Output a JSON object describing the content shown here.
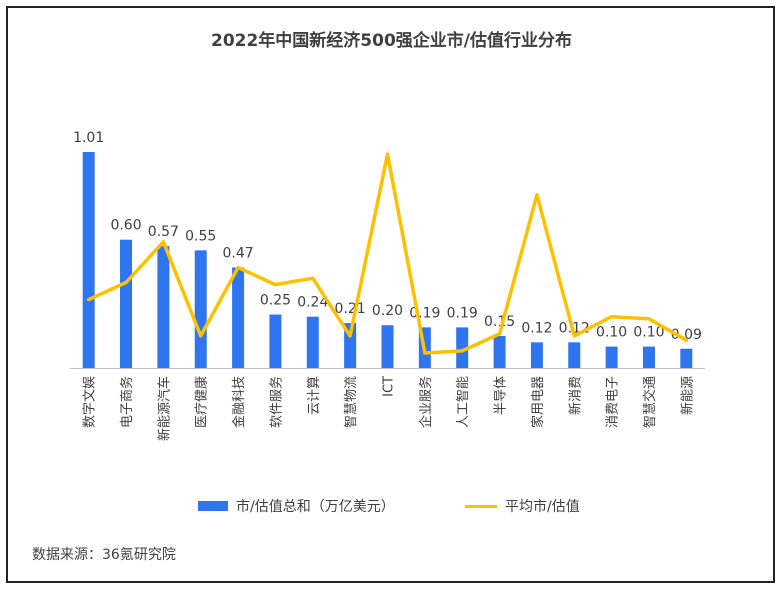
{
  "chart_data": {
    "type": "bar",
    "title": "2022年中国新经济500强企业市/估值行业分布",
    "categories": [
      "数字文娱",
      "电子商务",
      "新能源汽车",
      "医疗健康",
      "金融科技",
      "软件服务",
      "云计算",
      "智慧物流",
      "ICT",
      "企业服务",
      "人工智能",
      "半导体",
      "家用电器",
      "新消费",
      "消费电子",
      "智慧交通",
      "新能源"
    ],
    "series": [
      {
        "name": "市/估值总和（万亿美元）",
        "type": "bar",
        "color": "#2E75F0",
        "values": [
          1.01,
          0.6,
          0.57,
          0.55,
          0.47,
          0.25,
          0.24,
          0.21,
          0.2,
          0.19,
          0.19,
          0.15,
          0.12,
          0.12,
          0.1,
          0.1,
          0.09
        ],
        "labels": [
          "1.01",
          "0.60",
          "0.57",
          "0.55",
          "0.47",
          "0.25",
          "0.24",
          "0.21",
          "0.20",
          "0.19",
          "0.19",
          "0.15",
          "0.12",
          "0.12",
          "0.10",
          "0.10",
          "0.09"
        ]
      },
      {
        "name": "平均市/估值",
        "type": "line",
        "color": "#FFC000",
        "values": [
          0.32,
          0.4,
          0.59,
          0.15,
          0.47,
          0.39,
          0.42,
          0.15,
          1.0,
          0.07,
          0.08,
          0.16,
          0.81,
          0.15,
          0.24,
          0.23,
          0.13
        ]
      }
    ],
    "ylim": [
      0,
      1.01
    ],
    "grid": false,
    "legend_position": "bottom"
  },
  "source": "数据来源：36氪研究院"
}
